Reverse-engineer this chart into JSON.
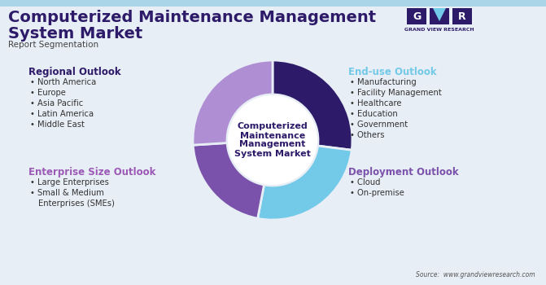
{
  "title_line1": "Computerized Maintenance Management",
  "title_line2": "System Market",
  "subtitle": "Report Segmentation",
  "background_color": "#e8eef5",
  "title_color": "#2d1b69",
  "subtitle_color": "#444444",
  "donut_segments": [
    {
      "label": "Regional",
      "value": 0.27,
      "color": "#2d1b69"
    },
    {
      "label": "End-use",
      "value": 0.26,
      "color": "#72c9e8"
    },
    {
      "label": "Deployment",
      "value": 0.21,
      "color": "#7b52ab"
    },
    {
      "label": "Enterprise",
      "value": 0.26,
      "color": "#b08ed4"
    }
  ],
  "donut_center_text": [
    "Computerized",
    "Maintenance",
    "Management",
    "System Market"
  ],
  "donut_center_color": "#2d1b69",
  "regional_title": "Regional Outlook",
  "regional_title_color": "#2d1b69",
  "regional_items": [
    "North America",
    "Europe",
    "Asia Pacific",
    "Latin America",
    "Middle East"
  ],
  "enduse_title": "End-use Outlook",
  "enduse_title_color": "#72c9e8",
  "enduse_items": [
    "Manufacturing",
    "Facility Management",
    "Healthcare",
    "Education",
    "Government",
    "Others"
  ],
  "enterprise_title": "Enterprise Size Outlook",
  "enterprise_title_color": "#9b59b6",
  "enterprise_items": [
    "Large Enterprises",
    "Small & Medium",
    "  Enterprises (SMEs)"
  ],
  "deployment_title": "Deployment Outlook",
  "deployment_title_color": "#7b52ab",
  "deployment_items": [
    "Cloud",
    "On-premise"
  ],
  "source_text": "Source:  www.grandviewresearch.com",
  "bullet": "•",
  "item_color": "#333333",
  "item_fontsize": 7.2,
  "section_title_fontsize": 8.5,
  "main_title_fontsize": 14,
  "subtitle_fontsize": 7.5
}
